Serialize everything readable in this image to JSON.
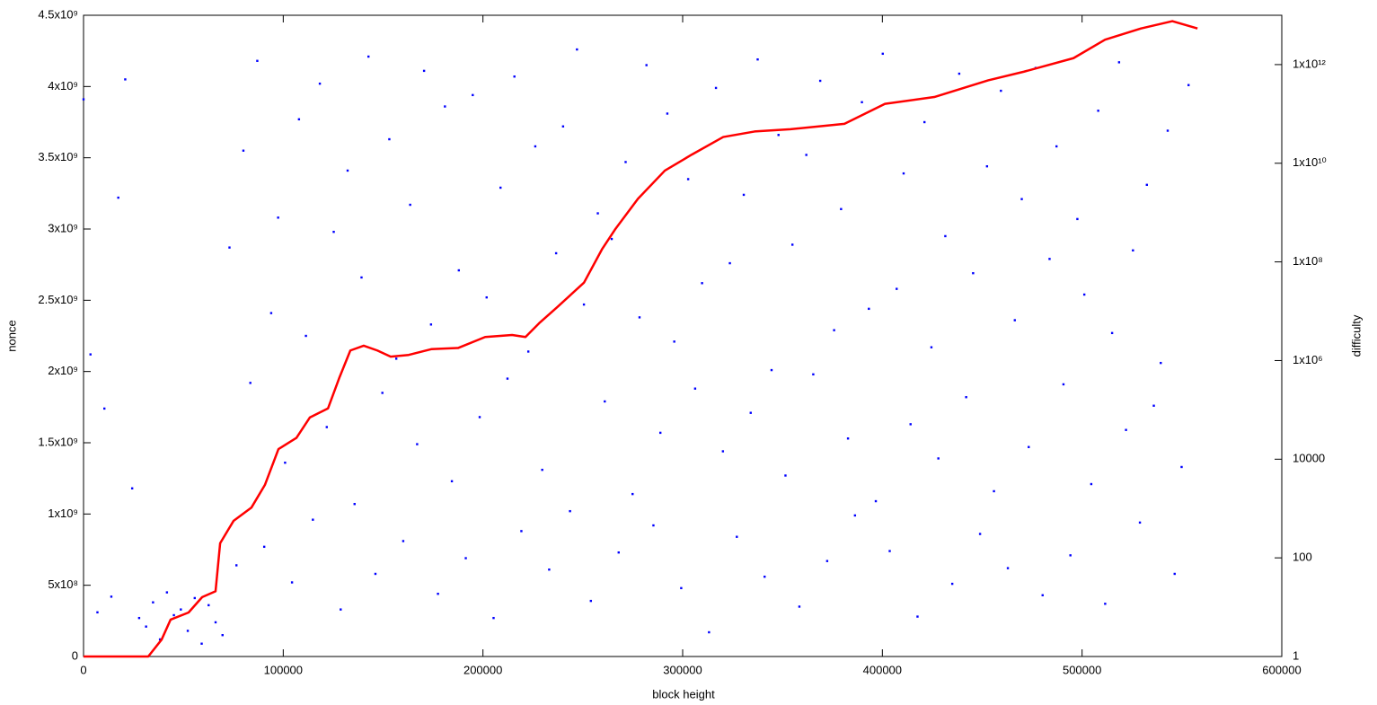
{
  "chart_data": {
    "type": "scatter",
    "x_label": "block height",
    "y_label": "nonce",
    "y2_label": "difficulty",
    "xlim": [
      0,
      600000
    ],
    "ylim": [
      0,
      4500000000
    ],
    "y2lim": [
      1,
      10000000000000
    ],
    "y2_log": true,
    "xticks": [
      0,
      100000,
      200000,
      300000,
      400000,
      500000,
      600000
    ],
    "yticks": [
      0,
      {
        "value": 500000000,
        "label": "5x10⁸"
      },
      {
        "value": 1000000000,
        "label": "1x10⁹"
      },
      {
        "value": 1500000000,
        "label": "1.5x10⁹"
      },
      {
        "value": 2000000000,
        "label": "2x10⁹"
      },
      {
        "value": 2500000000,
        "label": "2.5x10⁹"
      },
      {
        "value": 3000000000,
        "label": "3x10⁹"
      },
      {
        "value": 3500000000,
        "label": "3.5x10⁹"
      },
      {
        "value": 4000000000,
        "label": "4x10⁹"
      },
      {
        "value": 4500000000,
        "label": "4.5x10⁹"
      }
    ],
    "y2ticks": [
      1,
      100,
      10000,
      {
        "value": 1000000,
        "label": "1x10⁶"
      },
      {
        "value": 100000000,
        "label": "1x10⁸"
      },
      {
        "value": 10000000000,
        "label": "1x10¹⁰"
      },
      {
        "value": 1000000000000,
        "label": "1x10¹²"
      }
    ],
    "series": [
      {
        "type": "scatter",
        "color": "#0000ff",
        "x": [
          0,
          3480,
          6960,
          10440,
          13920,
          17400,
          20880,
          24360,
          27840,
          31320,
          34800,
          38280,
          41760,
          45240,
          48720,
          52200,
          55680,
          59160,
          62640,
          66120,
          69600,
          73080,
          76560,
          80040,
          83520,
          87000,
          90480,
          93960,
          97440,
          100920,
          104400,
          107880,
          111360,
          114840,
          118320,
          121800,
          125280,
          128760,
          132240,
          135720,
          139200,
          142680,
          146160,
          149640,
          153120,
          156600,
          160080,
          163560,
          167040,
          170520,
          174000,
          177480,
          180960,
          184440,
          187920,
          191400,
          194880,
          198360,
          201840,
          205320,
          208800,
          212280,
          215760,
          219240,
          222720,
          226200,
          229680,
          233160,
          236640,
          240120,
          243600,
          247080,
          250560,
          254040,
          257520,
          261000,
          264480,
          267960,
          271440,
          274920,
          278400,
          281880,
          285360,
          288840,
          292320,
          295800,
          299280,
          302760,
          306240,
          309720,
          313200,
          316680,
          320160,
          323640,
          327120,
          330600,
          334080,
          337560,
          341040,
          344520,
          348000,
          351480,
          354960,
          358440,
          361920,
          365400,
          368880,
          372360,
          375840,
          379320,
          382800,
          386280,
          389760,
          393240,
          396720,
          400200,
          403680,
          407160,
          410640,
          414120,
          417600,
          421080,
          424560,
          428040,
          431520,
          435000,
          438480,
          441960,
          445440,
          448920,
          452400,
          455880,
          459360,
          462840,
          466320,
          469800,
          473280,
          476760,
          480240,
          483720,
          487200,
          490680,
          494160,
          497640,
          501120,
          504600,
          508080,
          511560,
          515040,
          518520,
          522000,
          525480,
          528960,
          532440,
          535920,
          539400,
          542880,
          546360,
          549840,
          553320
        ],
        "values": [
          3910000000.0,
          2120000000.0,
          310000000.0,
          1740000000.0,
          420000000.0,
          3220000000.0,
          4050000000.0,
          1180000000.0,
          270000000.0,
          210000000.0,
          380000000.0,
          120000000.0,
          450000000.0,
          290000000.0,
          330000000.0,
          180000000.0,
          410000000.0,
          90000000.0,
          360000000.0,
          240000000.0,
          150000000.0,
          2870000000.0,
          640000000.0,
          3550000000.0,
          1920000000.0,
          4180000000.0,
          770000000.0,
          2410000000.0,
          3080000000.0,
          1360000000.0,
          520000000.0,
          3770000000.0,
          2250000000.0,
          960000000.0,
          4020000000.0,
          1610000000.0,
          2980000000.0,
          330000000.0,
          3410000000.0,
          1070000000.0,
          2660000000.0,
          4210000000.0,
          580000000.0,
          1850000000.0,
          3630000000.0,
          2090000000.0,
          810000000.0,
          3170000000.0,
          1490000000.0,
          4110000000.0,
          2330000000.0,
          440000000.0,
          3860000000.0,
          1230000000.0,
          2710000000.0,
          690000000.0,
          3940000000.0,
          1680000000.0,
          2520000000.0,
          270000000.0,
          3290000000.0,
          1950000000.0,
          4070000000.0,
          880000000.0,
          2140000000.0,
          3580000000.0,
          1310000000.0,
          610000000.0,
          2830000000.0,
          3720000000.0,
          1020000000.0,
          4260000000.0,
          2470000000.0,
          390000000.0,
          3110000000.0,
          1790000000.0,
          2930000000.0,
          730000000.0,
          3470000000.0,
          1140000000.0,
          2380000000.0,
          4150000000.0,
          920000000.0,
          1570000000.0,
          3810000000.0,
          2210000000.0,
          480000000.0,
          3350000000.0,
          1880000000.0,
          2620000000.0,
          170000000.0,
          3990000000.0,
          1440000000.0,
          2760000000.0,
          840000000.0,
          3240000000.0,
          1710000000.0,
          4190000000.0,
          560000000.0,
          2010000000.0,
          3660000000.0,
          1270000000.0,
          2890000000.0,
          350000000.0,
          3520000000.0,
          1980000000.0,
          4040000000.0,
          670000000.0,
          2290000000.0,
          3140000000.0,
          1530000000.0,
          990000000.0,
          3890000000.0,
          2440000000.0,
          1090000000.0,
          4230000000.0,
          740000000.0,
          2580000000.0,
          3390000000.0,
          1630000000.0,
          280000000.0,
          3750000000.0,
          2170000000.0,
          1390000000.0,
          2950000000.0,
          510000000.0,
          4090000000.0,
          1820000000.0,
          2690000000.0,
          860000000.0,
          3440000000.0,
          1160000000.0,
          3970000000.0,
          620000000.0,
          2360000000.0,
          3210000000.0,
          1470000000.0,
          4130000000.0,
          430000000.0,
          2790000000.0,
          3580000000.0,
          1910000000.0,
          710000000.0,
          3070000000.0,
          2540000000.0,
          1210000000.0,
          3830000000.0,
          370000000.0,
          2270000000.0,
          4170000000.0,
          1590000000.0,
          2850000000.0,
          940000000.0,
          3310000000.0,
          1760000000.0,
          2060000000.0,
          3690000000.0,
          580000000.0,
          1330000000.0,
          4010000000.0
        ]
      },
      {
        "type": "line",
        "axis": "y2",
        "color": "#ff0000",
        "x": [
          0,
          32400,
          39100,
          43600,
          52600,
          59400,
          66100,
          68400,
          75100,
          84100,
          90800,
          97600,
          106600,
          113300,
          122400,
          128200,
          133600,
          140300,
          147100,
          153800,
          162800,
          174100,
          187600,
          201100,
          214600,
          221300,
          228100,
          237100,
          250600,
          259600,
          266400,
          277600,
          291100,
          304600,
          320300,
          336000,
          354000,
          381000,
          401300,
          426000,
          453000,
          471000,
          495700,
          511500,
          529500,
          545200,
          557800
        ],
        "values": [
          1,
          1,
          2.2,
          5.6,
          7.8,
          16,
          21,
          198,
          560,
          1050,
          3000,
          16000,
          27000,
          70000,
          107000,
          460000,
          1600000,
          2000000,
          1600000,
          1200000,
          1300000,
          1700000,
          1800000,
          3000000,
          3300000,
          3000000,
          5700000,
          12000000,
          38000000,
          180000000,
          470000000,
          1900000000,
          7100000000,
          15000000000,
          34000000000,
          44000000000,
          49000000000,
          63000000000,
          160000000000,
          220000000000,
          480000000000,
          720000000000,
          1350000000000,
          3200000000000,
          5400000000000,
          7600000000000,
          5400000000000
        ]
      }
    ]
  }
}
